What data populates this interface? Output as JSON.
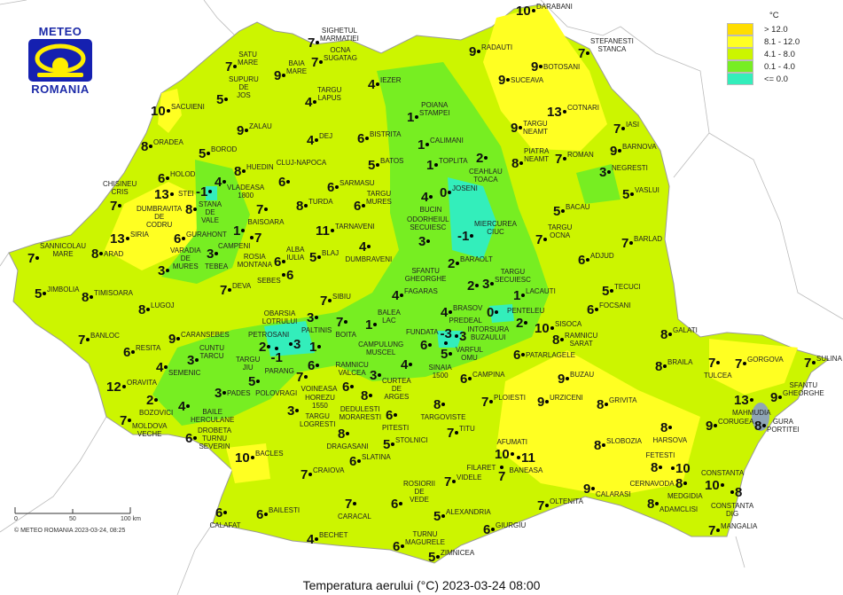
{
  "logo": {
    "top": "METEO",
    "bottom": "ROMANIA"
  },
  "legend": {
    "unit": "°C",
    "items": [
      {
        "label": "> 12.0",
        "color": "#ffdd00"
      },
      {
        "label": "8.1 - 12.0",
        "color": "#ffff22"
      },
      {
        "label": "4.1 - 8.0",
        "color": "#ccf500"
      },
      {
        "label": "0.1 - 4.0",
        "color": "#77ee22"
      },
      {
        "label": "<= 0.0",
        "color": "#33eebb"
      }
    ]
  },
  "title": "Temperatura aerului (°C) 2023-03-24 08:00",
  "scale": {
    "ticks": [
      "0",
      "50",
      "100 km"
    ]
  },
  "copyright": "© METEO ROMANIA 2023-03-24, 08:25",
  "stations": [
    {
      "name": "SIGHETUL\nMARMATIEI",
      "value": "7"
    },
    {
      "name": "OCNA\nSUGATAG",
      "value": "7"
    },
    {
      "name": "SATU\nMARE",
      "value": "7"
    },
    {
      "name": "BAIA\nMARE",
      "value": "9"
    },
    {
      "name": "SUPURU\nDE\nJOS",
      "value": "5"
    },
    {
      "name": "SACUIENI",
      "value": "10"
    },
    {
      "name": "IEZER",
      "value": "4"
    },
    {
      "name": "TARGU\nLAPUS",
      "value": "4"
    },
    {
      "name": "ZALAU",
      "value": "9"
    },
    {
      "name": "DEJ",
      "value": "4"
    },
    {
      "name": "BISTRITA",
      "value": "6"
    },
    {
      "name": "ORADEA",
      "value": "8"
    },
    {
      "name": "BOROD",
      "value": "5"
    },
    {
      "name": "HUEDIN",
      "value": "8"
    },
    {
      "name": "VLADEASA\n1800",
      "value": "4"
    },
    {
      "name": "BATOS",
      "value": "5"
    },
    {
      "name": "CLUJ-NAPOCA",
      "value": "6"
    },
    {
      "name": "SARMASU",
      "value": "6"
    },
    {
      "name": "HOLOD",
      "value": "6"
    },
    {
      "name": "DUMBRAVITA\nDE\nCODRU",
      "value": "13"
    },
    {
      "name": "STANA\nDE\nVALE",
      "value": "-1"
    },
    {
      "name": "CHISINEU\nCRIS",
      "value": "7"
    },
    {
      "name": "STEI",
      "value": "8"
    },
    {
      "name": "BAISOARA",
      "value": "7"
    },
    {
      "name": "TURDA",
      "value": "8"
    },
    {
      "name": "TARGU\nMURES",
      "value": "6"
    },
    {
      "name": "CAMPENI",
      "value": "1"
    },
    {
      "name": "ROSIA\nMONTANA",
      "value": "7"
    },
    {
      "name": "SIRIA",
      "value": "13"
    },
    {
      "name": "GURAHONT",
      "value": "6"
    },
    {
      "name": "TARNAVENI",
      "value": "11"
    },
    {
      "name": "SANNICOLAU\nMARE",
      "value": "7"
    },
    {
      "name": "ARAD",
      "value": "8"
    },
    {
      "name": "TEBEA",
      "value": "3"
    },
    {
      "name": "VARADIA\nDE\nMURES",
      "value": "3"
    },
    {
      "name": "ALBA\nIULIA",
      "value": "6"
    },
    {
      "name": "SEBES",
      "value": "6"
    },
    {
      "name": "BLAJ",
      "value": "5"
    },
    {
      "name": "DUMBRAVENI",
      "value": "4"
    },
    {
      "name": "JIMBOLIA",
      "value": "5"
    },
    {
      "name": "TIMISOARA",
      "value": "8"
    },
    {
      "name": "DEVA",
      "value": "7"
    },
    {
      "name": "LUGOJ",
      "value": "8"
    },
    {
      "name": "SIBIU",
      "value": "7"
    },
    {
      "name": "FAGARAS",
      "value": "4"
    },
    {
      "name": "PALTINIS",
      "value": "3"
    },
    {
      "name": "BOITA",
      "value": "7"
    },
    {
      "name": "BALEA\nLAC",
      "value": "1"
    },
    {
      "name": "BRASOV",
      "value": "4"
    },
    {
      "name": "PREDEAL",
      "value": "3"
    },
    {
      "name": "VARFUL\nOMU",
      "value": "-3"
    },
    {
      "name": "SINAIA\n1500",
      "value": "5"
    },
    {
      "name": "FUNDATA",
      "value": "6"
    },
    {
      "name": "CURTEA\nDE\nARGES",
      "value": "3"
    },
    {
      "name": "CAMPULUNG\nMUSCEL",
      "value": "4"
    },
    {
      "name": "RAMNICU\nVALCEA",
      "value": "6"
    },
    {
      "name": "DEDULESTI\nMORARESTI",
      "value": "8"
    },
    {
      "name": "CAMPINA",
      "value": "6"
    },
    {
      "name": "PLOIESTI",
      "value": "7"
    },
    {
      "name": "TARGOVISTE",
      "value": "8"
    },
    {
      "name": "PITESTI",
      "value": "6"
    },
    {
      "name": "INTORSURA\nBUZAULUI",
      "value": "0"
    },
    {
      "name": "PENTELEU",
      "value": "2"
    },
    {
      "name": "SISOCA",
      "value": "10"
    },
    {
      "name": "LACAUTI",
      "value": "1"
    },
    {
      "name": "PETROSANI",
      "value": "2"
    },
    {
      "name": "PARANG",
      "value": "-1"
    },
    {
      "name": "OBARSIA\nLOTRULUI",
      "value": "3"
    },
    {
      "name": "VOINEASA",
      "value": "1"
    },
    {
      "name": "HOREZU\n1550",
      "value": "6"
    },
    {
      "name": "POLOVRAGI",
      "value": "7"
    },
    {
      "name": "TARGU\nJIU",
      "value": "5"
    },
    {
      "name": "PADES",
      "value": "3"
    },
    {
      "name": "TARGU\nLOGRESTI",
      "value": "3"
    },
    {
      "name": "CARANSEBES",
      "value": "9"
    },
    {
      "name": "BANLOC",
      "value": "7"
    },
    {
      "name": "RESITA",
      "value": "6"
    },
    {
      "name": "CUNTU\nTARCU",
      "value": "3"
    },
    {
      "name": "SEMENIC",
      "value": "4"
    },
    {
      "name": "ORAVITA",
      "value": "12"
    },
    {
      "name": "BOZOVICI",
      "value": "2"
    },
    {
      "name": "BAILE\nHERCULANE",
      "value": "4"
    },
    {
      "name": "MOLDOVA\nVECHE",
      "value": "7"
    },
    {
      "name": "DROBETA\nTURNU\nSEVERIN",
      "value": "6"
    },
    {
      "name": "BACLES",
      "value": "10"
    },
    {
      "name": "DRAGASANI",
      "value": "8"
    },
    {
      "name": "CRAIOVA",
      "value": "7"
    },
    {
      "name": "SLATINA",
      "value": "6"
    },
    {
      "name": "STOLNICI",
      "value": "5"
    },
    {
      "name": "CARACAL",
      "value": "7"
    },
    {
      "name": "CALAFAT",
      "value": "6"
    },
    {
      "name": "BAILESTI",
      "value": "6"
    },
    {
      "name": "BECHET",
      "value": "4"
    },
    {
      "name": "ROSIORII\nDE\nVEDE",
      "value": "6"
    },
    {
      "name": "ALEXANDRIA",
      "value": "5"
    },
    {
      "name": "TURNU\nMAGURELE",
      "value": "6"
    },
    {
      "name": "ZIMNICEA",
      "value": "5"
    },
    {
      "name": "VIDELE",
      "value": "7"
    },
    {
      "name": "TITU",
      "value": "7"
    },
    {
      "name": "GIURGIU",
      "value": "6"
    },
    {
      "name": "AFUMATI",
      "value": "10"
    },
    {
      "name": "BANEASA",
      "value": "11"
    },
    {
      "name": "FILARET",
      "value": "7"
    },
    {
      "name": "OLTENITA",
      "value": "7"
    },
    {
      "name": "URZICENI",
      "value": "9"
    },
    {
      "name": "BUZAU",
      "value": "9"
    },
    {
      "name": "PATARLAGELE",
      "value": "6"
    },
    {
      "name": "RAMNICU\nSARAT",
      "value": "8"
    },
    {
      "name": "FOCSANI",
      "value": "6"
    },
    {
      "name": "TECUCI",
      "value": "5"
    },
    {
      "name": "GALATI",
      "value": "8"
    },
    {
      "name": "BRAILA",
      "value": "8"
    },
    {
      "name": "GRIVITA",
      "value": "8"
    },
    {
      "name": "SLOBOZIA",
      "value": "8"
    },
    {
      "name": "HARSOVA",
      "value": "8"
    },
    {
      "name": "FETESTI",
      "value": "8"
    },
    {
      "name": "CERNAVODA",
      "value": "10"
    },
    {
      "name": "CALARASI",
      "value": "9"
    },
    {
      "name": "MEDGIDIA",
      "value": "8"
    },
    {
      "name": "ADAMCLISI",
      "value": "8"
    },
    {
      "name": "CONSTANTA",
      "value": "10"
    },
    {
      "name": "CONSTANTA\nDIG",
      "value": "8"
    },
    {
      "name": "MANGALIA",
      "value": "7"
    },
    {
      "name": "CORUGEA",
      "value": "9"
    },
    {
      "name": "TULCEA",
      "value": "7"
    },
    {
      "name": "GORGOVA",
      "value": "7"
    },
    {
      "name": "MAHMUDIA",
      "value": "13"
    },
    {
      "name": "SULINA",
      "value": "7"
    },
    {
      "name": "SFANTU\nGHEORGHE",
      "value": "9"
    },
    {
      "name": "GURA\nPORTITEI",
      "value": "8"
    },
    {
      "name": "DARABANI",
      "value": "10"
    },
    {
      "name": "RADAUTI",
      "value": "9"
    },
    {
      "name": "STEFANESTI\nSTANCA",
      "value": "7"
    },
    {
      "name": "BOTOSANI",
      "value": "9"
    },
    {
      "name": "SUCEAVA",
      "value": "9"
    },
    {
      "name": "POIANA\nSTAMPEI",
      "value": "1"
    },
    {
      "name": "COTNARI",
      "value": "13"
    },
    {
      "name": "TARGU\nNEAMT",
      "value": "9"
    },
    {
      "name": "CALIMANI",
      "value": "1"
    },
    {
      "name": "IASI",
      "value": "7"
    },
    {
      "name": "TOPLITA",
      "value": "1"
    },
    {
      "name": "CEAHLAU\nTOACA",
      "value": "2"
    },
    {
      "name": "PIATRA\nNEAMT",
      "value": "8"
    },
    {
      "name": "ROMAN",
      "value": "7"
    },
    {
      "name": "BARNOVA",
      "value": "9"
    },
    {
      "name": "NEGRESTI",
      "value": "3"
    },
    {
      "name": "BUCIN",
      "value": "4"
    },
    {
      "name": "JOSENI",
      "value": "0"
    },
    {
      "name": "VASLUI",
      "value": "5"
    },
    {
      "name": "BACAU",
      "value": "5"
    },
    {
      "name": "MIERCUREA\nCIUC",
      "value": "-1"
    },
    {
      "name": "ODORHEIUL\nSECUIESC",
      "value": "3"
    },
    {
      "name": "TARGU\nOCNA",
      "value": "7"
    },
    {
      "name": "BARLAD",
      "value": "7"
    },
    {
      "name": "ADJUD",
      "value": "6"
    },
    {
      "name": "BARAOLT",
      "value": "2"
    },
    {
      "name": "TARGU\nSECUIESC",
      "value": "3"
    },
    {
      "name": "SFANTU\nGHEORGHE",
      "value": "2"
    }
  ]
}
